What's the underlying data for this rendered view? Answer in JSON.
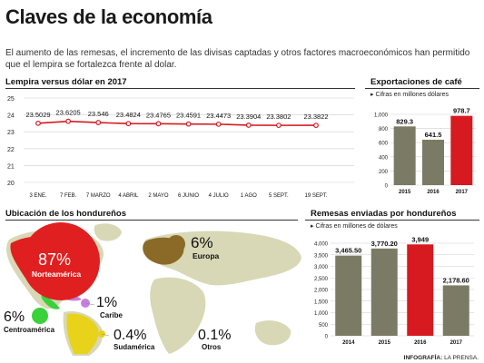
{
  "header": {
    "title": "Claves de la economía",
    "intro": "El aumento de las remesas, el incremento de las divisas captadas y otros factores macroeconómicos han permitido que el lempira se fortalezca frente al dolar."
  },
  "exchange": {
    "section_title": "Lempira versus dólar en 2017"
  },
  "coffee": {
    "section_title": "Exportaciones de café",
    "subtitle": "▸ Cifras en millones dólares"
  },
  "map": {
    "section_title": "Ubicación de los hondureños",
    "regions": [
      {
        "pct": "87%",
        "name": "Norteamérica",
        "color": "#e02020"
      },
      {
        "pct": "6%",
        "name": "Europa",
        "color": "#8a6a26"
      },
      {
        "pct": "1%",
        "name": "Caribe",
        "color": "#c77ee0"
      },
      {
        "pct": "6%",
        "name": "Centroamérica",
        "color": "#3ad23a"
      },
      {
        "pct": "0.4%",
        "name": "Sudamérica",
        "color": "#e8d21a"
      },
      {
        "pct": "0.1%",
        "name": "Otros",
        "color": "#c9c9a6"
      }
    ]
  },
  "remittances": {
    "section_title": "Remesas enviadas por hondureños",
    "subtitle": "▸ Cifras en millones de dólares"
  },
  "credit": {
    "label": "INFOGRAFÍA:",
    "source": "LA PRENSA."
  },
  "colors": {
    "olive": "#7b7a64",
    "red": "#d71920",
    "mapland": "#d8d8b6",
    "mapocean": "#ffffff"
  },
  "chart_data": [
    {
      "type": "line",
      "title": "Lempira versus dólar en 2017",
      "categories": [
        "3 ENE.",
        "7 FEB.",
        "7 MARZO",
        "4 ABRIL",
        "2 MAYO",
        "6 JUNIO",
        "4 JULIO",
        "1 AGO",
        "5 SEPT.",
        "19 SEPT."
      ],
      "values": [
        23.5029,
        23.6205,
        23.546,
        23.4824,
        23.4765,
        23.4591,
        23.4473,
        23.3904,
        23.3802,
        23.3822
      ],
      "value_labels": [
        "23.5029",
        "23.6205",
        "23.546",
        "23.4824",
        "23.4765",
        "23.4591",
        "23.4473",
        "23.3904",
        "23.3802",
        "23.3822"
      ],
      "yticks": [
        25,
        24,
        23,
        22,
        21,
        20
      ],
      "ylim": [
        20,
        25
      ],
      "grid": true,
      "color": "#d71920"
    },
    {
      "type": "bar",
      "title": "Exportaciones de café",
      "categories": [
        "2015",
        "2016",
        "2017"
      ],
      "values": [
        829.3,
        641.5,
        978.7
      ],
      "value_labels": [
        "829.3",
        "641.5",
        "978.7"
      ],
      "yticks": [
        "1,000",
        "800",
        "600",
        "400",
        "200",
        "0"
      ],
      "ylim": [
        0,
        1000
      ],
      "colors": [
        "#7b7a64",
        "#7b7a64",
        "#d71920"
      ]
    },
    {
      "type": "bar",
      "title": "Remesas enviadas por hondureños",
      "categories": [
        "2014",
        "2015",
        "2016",
        "2017"
      ],
      "values": [
        3465.5,
        3770.2,
        3949,
        2178.6
      ],
      "value_labels": [
        "3,465.50",
        "3,770.20",
        "3,949",
        "2,178.60"
      ],
      "yticks": [
        "4,000",
        "3,500",
        "3,000",
        "2,500",
        "2,000",
        "1,500",
        "1,000",
        "500",
        "0"
      ],
      "ylim": [
        0,
        4000
      ],
      "colors": [
        "#7b7a64",
        "#7b7a64",
        "#d71920",
        "#7b7a64"
      ]
    }
  ]
}
